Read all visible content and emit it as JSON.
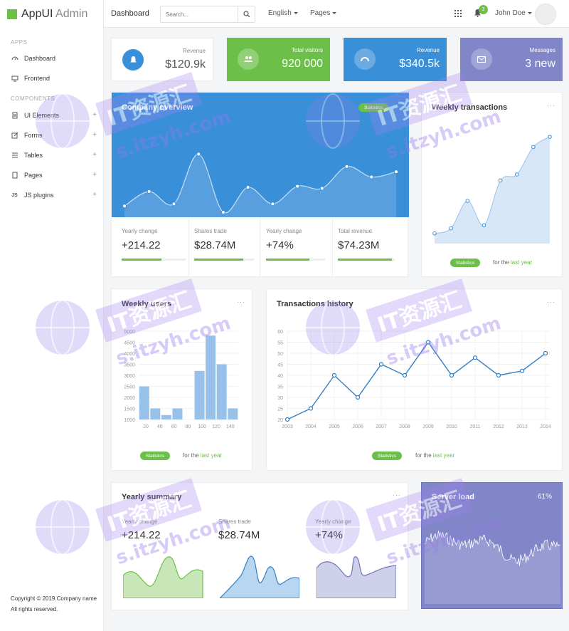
{
  "brand": {
    "name_bold": "AppUI",
    "name_light": "Admin"
  },
  "sidebar": {
    "apps_section": "APPS",
    "apps": [
      {
        "label": "Dashboard",
        "icon": "dashboard-icon"
      },
      {
        "label": "Frontend",
        "icon": "monitor-icon"
      }
    ],
    "components_section": "COMPONENTS",
    "components": [
      {
        "label": "UI Elements",
        "icon": "ui-elements-icon"
      },
      {
        "label": "Forms",
        "icon": "forms-icon"
      },
      {
        "label": "Tables",
        "icon": "tables-icon"
      },
      {
        "label": "Pages",
        "icon": "pages-icon"
      },
      {
        "label": "JS plugins",
        "icon": "js-icon"
      }
    ],
    "copyright": "Copyright © 2019.Company name",
    "rights": "All rights reserved."
  },
  "topbar": {
    "title": "Dashboard",
    "search_placeholder": "Search...",
    "language": "English",
    "pages": "Pages",
    "notifications": "3",
    "user": "John Doe"
  },
  "stats": [
    {
      "label": "Revenue",
      "value": "$120.9k",
      "color": "#ffffff",
      "icon": "bell-icon"
    },
    {
      "label": "Total visitors",
      "value": "920 000",
      "color": "#6cc04a",
      "icon": "users-icon"
    },
    {
      "label": "Revenue",
      "value": "$340.5k",
      "color": "#3a8fd9",
      "icon": "dashboard-gauge-icon"
    },
    {
      "label": "Messages",
      "value": "3 new",
      "color": "#8186c8",
      "icon": "mail-icon"
    }
  ],
  "company": {
    "title": "Company overview",
    "pill": "Statistics",
    "kpis": [
      {
        "label": "Yearly change",
        "value": "+214.22",
        "fill": 0.62
      },
      {
        "label": "Shares trade",
        "value": "$28.74M",
        "fill": 0.82
      },
      {
        "label": "Yearly change",
        "value": "+74%",
        "fill": 0.74
      },
      {
        "label": "Total revenue",
        "value": "$74.23M",
        "fill": 0.95
      }
    ]
  },
  "weekly_transactions": {
    "title": "Weekly transactions",
    "pill": "Statistics",
    "footer_prefix": "for the",
    "footer_link": "last year"
  },
  "weekly_users": {
    "title": "Weekly users",
    "pill": "Statistics",
    "footer_prefix": "for the",
    "footer_link": "last year"
  },
  "transactions_history": {
    "title": "Transactions history",
    "pill": "Statistics",
    "footer_prefix": "for the",
    "footer_link": "last year"
  },
  "yearly_summary": {
    "title": "Yearly summary",
    "items": [
      {
        "label": "Yearly change",
        "value": "+214.22"
      },
      {
        "label": "Shares trade",
        "value": "$28.74M"
      },
      {
        "label": "Yearly change",
        "value": "+74%"
      }
    ]
  },
  "server_load": {
    "title": "Server load",
    "value": "61%"
  },
  "watermark": {
    "line1": "IT资源汇",
    "line2": "s.itzyh.com"
  },
  "chart_data": [
    {
      "type": "area",
      "name": "company-overview",
      "x": [
        1,
        2,
        3,
        4,
        5,
        6,
        7,
        8,
        9,
        10,
        11,
        12
      ],
      "values": [
        28,
        42,
        30,
        78,
        22,
        46,
        30,
        47,
        45,
        66,
        56,
        61
      ],
      "ylim": [
        0,
        100
      ]
    },
    {
      "type": "area",
      "name": "weekly-transactions",
      "x": [
        1,
        2,
        3,
        4,
        5,
        6,
        7,
        8
      ],
      "values": [
        10,
        15,
        42,
        18,
        62,
        68,
        95,
        105
      ],
      "ylim": [
        0,
        110
      ]
    },
    {
      "type": "bar",
      "name": "weekly-users",
      "categories": [
        "20",
        "40",
        "60",
        "80",
        "100",
        "120",
        "140"
      ],
      "values": [
        2500,
        1500,
        1200,
        1500,
        3200,
        4800,
        3500,
        1500
      ],
      "x": [
        15,
        25,
        35,
        45,
        65,
        75,
        85,
        95
      ],
      "x_ticks": [
        "20",
        "40",
        "60",
        "80",
        "100",
        "120",
        "140"
      ],
      "y_ticks": [
        "1000",
        "1500",
        "2000",
        "2500",
        "3000",
        "3500",
        "4000",
        "4500",
        "5000"
      ],
      "ylim": [
        1000,
        5000
      ]
    },
    {
      "type": "line",
      "name": "transactions-history",
      "x": [
        "2003",
        "2004",
        "2005",
        "2006",
        "2007",
        "2008",
        "2009",
        "2010",
        "2011",
        "2012",
        "2013",
        "2014"
      ],
      "values": [
        20,
        25,
        40,
        30,
        45,
        40,
        55,
        40,
        48,
        40,
        42,
        50
      ],
      "y_ticks": [
        "20",
        "25",
        "30",
        "35",
        "40",
        "45",
        "50",
        "55",
        "60"
      ],
      "ylim": [
        20,
        60
      ]
    }
  ]
}
